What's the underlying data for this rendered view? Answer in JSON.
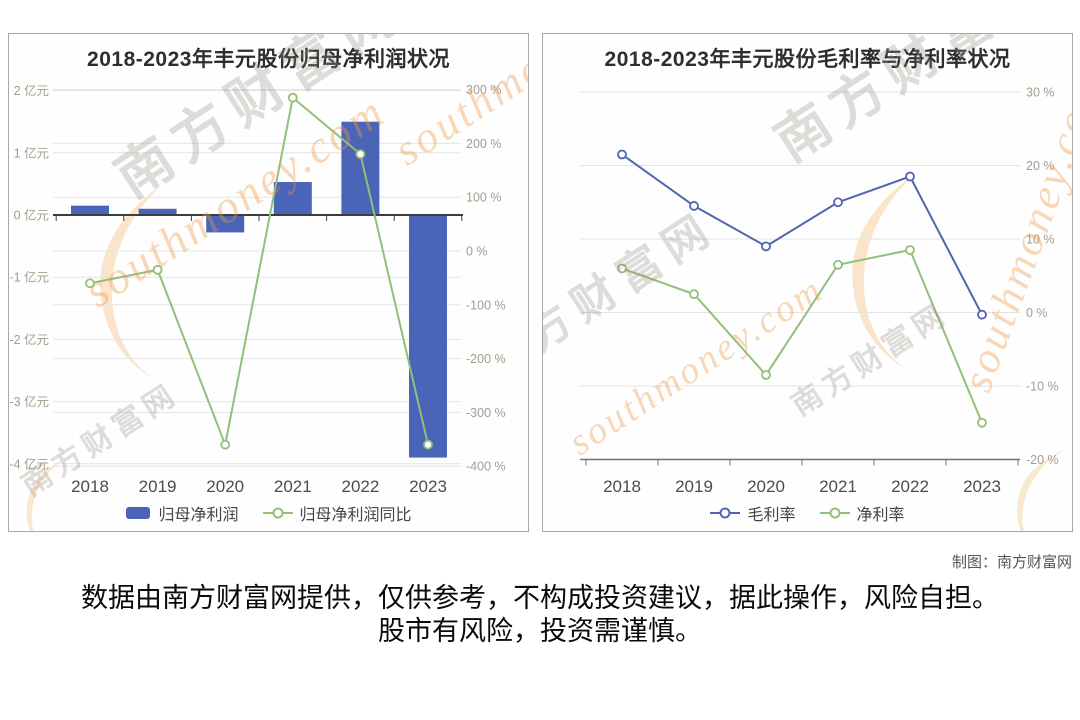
{
  "page": {
    "credit": "制图：南方财富网",
    "disclaimer_line1": "数据由南方财富网提供，仅供参考，不构成投资建议，据此操作，风险自担。",
    "disclaimer_line2": "股市有风险，投资需谨慎。",
    "watermark": {
      "cn": "南方财富网",
      "en": "southmoney.com"
    }
  },
  "chart_data": [
    {
      "type": "bar",
      "title": "2018-2023年丰元股份归母净利润状况",
      "categories": [
        "2018",
        "2019",
        "2020",
        "2021",
        "2022",
        "2023"
      ],
      "series": [
        {
          "name": "归母净利润",
          "kind": "bar",
          "axis": "left",
          "unit": "亿元",
          "color": "#4a64b8",
          "values": [
            0.15,
            0.1,
            -0.28,
            0.53,
            1.5,
            -3.9
          ]
        },
        {
          "name": "归母净利润同比",
          "kind": "line",
          "axis": "right",
          "unit": "%",
          "color": "#92bf79",
          "values": [
            -60,
            -35,
            -360,
            285,
            180,
            -360
          ]
        }
      ],
      "left_axis": {
        "min": -4,
        "max": 2,
        "ticks": [
          {
            "v": 2,
            "label": "2 亿元"
          },
          {
            "v": 1,
            "label": "1 亿元"
          },
          {
            "v": 0,
            "label": "0 亿元"
          },
          {
            "v": -1,
            "label": "-1 亿元"
          },
          {
            "v": -2,
            "label": "-2 亿元"
          },
          {
            "v": -3,
            "label": "-3 亿元"
          },
          {
            "v": -4,
            "label": "-4 亿元"
          }
        ]
      },
      "right_axis": {
        "min": -400,
        "max": 300,
        "ticks": [
          {
            "v": 300,
            "label": "300 %"
          },
          {
            "v": 200,
            "label": "200 %"
          },
          {
            "v": 100,
            "label": "100 %"
          },
          {
            "v": 0,
            "label": "0 %"
          },
          {
            "v": -100,
            "label": "-100 %"
          },
          {
            "v": -200,
            "label": "-200 %"
          },
          {
            "v": -300,
            "label": "-300 %"
          },
          {
            "v": -400,
            "label": "-400 %"
          }
        ]
      },
      "grid": true,
      "legend_position": "bottom"
    },
    {
      "type": "line",
      "title": "2018-2023年丰元股份毛利率与净利率状况",
      "categories": [
        "2018",
        "2019",
        "2020",
        "2021",
        "2022",
        "2023"
      ],
      "series": [
        {
          "name": "毛利率",
          "kind": "line",
          "axis": "right",
          "unit": "%",
          "color": "#5165ae",
          "values": [
            21.5,
            14.5,
            9,
            15,
            18.5,
            -0.3
          ]
        },
        {
          "name": "净利率",
          "kind": "line",
          "axis": "right",
          "unit": "%",
          "color": "#92bf79",
          "values": [
            6,
            2.5,
            -8.5,
            6.5,
            8.5,
            -15
          ]
        }
      ],
      "right_axis": {
        "min": -20,
        "max": 30,
        "ticks": [
          {
            "v": 30,
            "label": "30 %"
          },
          {
            "v": 20,
            "label": "20 %"
          },
          {
            "v": 10,
            "label": "10 %"
          },
          {
            "v": 0,
            "label": "0 %"
          },
          {
            "v": -10,
            "label": "-10 %"
          },
          {
            "v": -20,
            "label": "-20 %"
          }
        ]
      },
      "grid": true,
      "legend_position": "bottom"
    }
  ]
}
